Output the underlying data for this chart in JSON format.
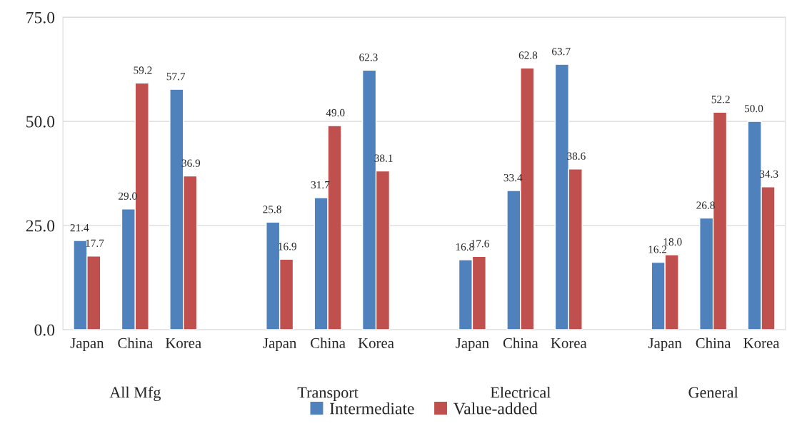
{
  "chart_data": {
    "type": "bar",
    "categories": [
      "Japan",
      "China",
      "Korea",
      null,
      "Japan",
      "China",
      "Korea",
      null,
      "Japan",
      "China",
      "Korea",
      null,
      "Japan",
      "China",
      "Korea"
    ],
    "series": [
      {
        "name": "Intermediate",
        "color": "#4f81bd",
        "values": [
          21.4,
          29.0,
          57.7,
          null,
          25.8,
          31.7,
          62.3,
          null,
          16.8,
          33.4,
          63.7,
          null,
          16.2,
          26.8,
          50.0
        ],
        "value_labels": [
          "21.4",
          "29.0",
          "57.7",
          null,
          "25.8",
          "31.7",
          "62.3",
          null,
          "16.8",
          "33.4",
          "63.7",
          null,
          "16.2",
          "26.8",
          "50.0"
        ]
      },
      {
        "name": "Value-added",
        "color": "#c0504d",
        "values": [
          17.7,
          59.2,
          36.9,
          null,
          16.9,
          49.0,
          38.1,
          null,
          17.6,
          62.8,
          38.6,
          null,
          18.0,
          52.2,
          34.3
        ],
        "value_labels": [
          "17.7",
          "59.2",
          "36.9",
          null,
          "16.9",
          "49.0",
          "38.1",
          null,
          "17.6",
          "62.8",
          "38.6",
          null,
          "18.0",
          "52.2",
          "34.3"
        ]
      }
    ],
    "ylim": [
      0,
      75
    ],
    "yticks": [
      {
        "value": 0,
        "label": "0.0"
      },
      {
        "value": 25,
        "label": "25.0"
      },
      {
        "value": 50,
        "label": "50.0"
      },
      {
        "value": 75,
        "label": "75.0"
      }
    ],
    "grid": "y",
    "legend": "bottom",
    "annotations": [
      "All Mfg",
      "Transport",
      "Electrical",
      "General"
    ]
  }
}
